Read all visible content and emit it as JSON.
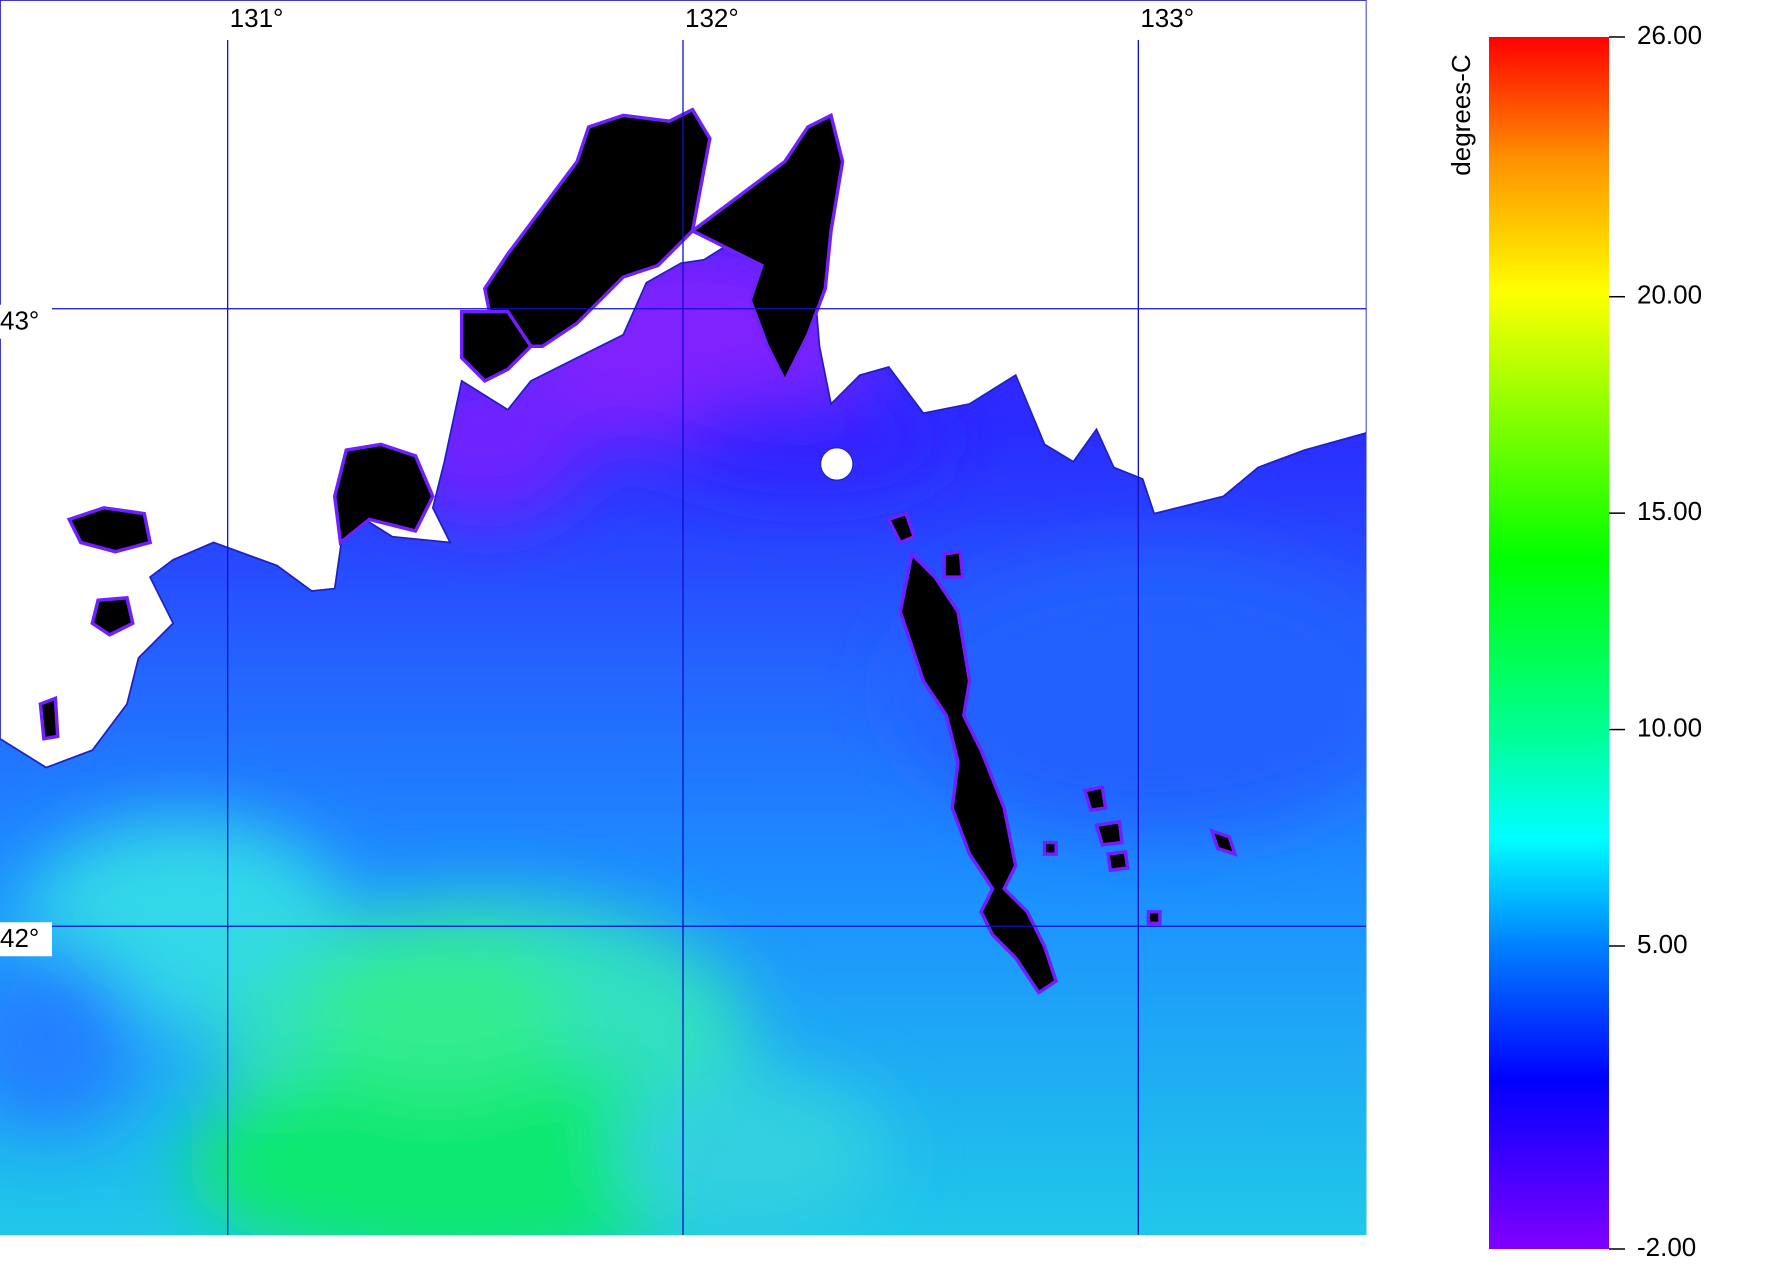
{
  "map": {
    "lonlim": [
      130.5,
      133.5
    ],
    "latlim": [
      41.5,
      43.5
    ],
    "lon_ticks": [
      {
        "value": 131,
        "label": "131°"
      },
      {
        "value": 132,
        "label": "132°"
      },
      {
        "value": 133,
        "label": "133°"
      }
    ],
    "lat_ticks": [
      {
        "value": 43,
        "label": "43°"
      },
      {
        "value": 42,
        "label": "42°"
      }
    ]
  },
  "colorbar": {
    "label": "degrees-C",
    "range": [
      -2,
      26
    ],
    "ticks": [
      {
        "value": -2,
        "label": "-2.00"
      },
      {
        "value": 5,
        "label": "5.00"
      },
      {
        "value": 10,
        "label": "10.00"
      },
      {
        "value": 15,
        "label": "15.00"
      },
      {
        "value": 20,
        "label": "20.00"
      },
      {
        "value": 26,
        "label": "26.00"
      }
    ]
  }
}
